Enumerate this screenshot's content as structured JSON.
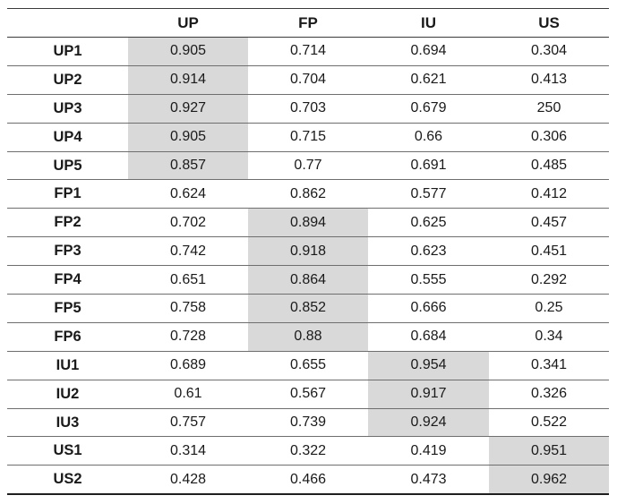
{
  "table": {
    "corner": "",
    "columns": [
      "UP",
      "FP",
      "IU",
      "US"
    ],
    "rows": [
      {
        "label": "UP1",
        "values": [
          "0.905",
          "0.714",
          "0.694",
          "0.304"
        ],
        "highlight": 0
      },
      {
        "label": "UP2",
        "values": [
          "0.914",
          "0.704",
          "0.621",
          "0.413"
        ],
        "highlight": 0
      },
      {
        "label": "UP3",
        "values": [
          "0.927",
          "0.703",
          "0.679",
          "250"
        ],
        "highlight": 0
      },
      {
        "label": "UP4",
        "values": [
          "0.905",
          "0.715",
          "0.66",
          "0.306"
        ],
        "highlight": 0
      },
      {
        "label": "UP5",
        "values": [
          "0.857",
          "0.77",
          "0.691",
          "0.485"
        ],
        "highlight": 0
      },
      {
        "label": "FP1",
        "values": [
          "0.624",
          "0.862",
          "0.577",
          "0.412"
        ],
        "highlight": -1
      },
      {
        "label": "FP2",
        "values": [
          "0.702",
          "0.894",
          "0.625",
          "0.457"
        ],
        "highlight": 1
      },
      {
        "label": "FP3",
        "values": [
          "0.742",
          "0.918",
          "0.623",
          "0.451"
        ],
        "highlight": 1
      },
      {
        "label": "FP4",
        "values": [
          "0.651",
          "0.864",
          "0.555",
          "0.292"
        ],
        "highlight": 1
      },
      {
        "label": "FP5",
        "values": [
          "0.758",
          "0.852",
          "0.666",
          "0.25"
        ],
        "highlight": 1
      },
      {
        "label": "FP6",
        "values": [
          "0.728",
          "0.88",
          "0.684",
          "0.34"
        ],
        "highlight": 1
      },
      {
        "label": "IU1",
        "values": [
          "0.689",
          "0.655",
          "0.954",
          "0.341"
        ],
        "highlight": 2
      },
      {
        "label": "IU2",
        "values": [
          "0.61",
          "0.567",
          "0.917",
          "0.326"
        ],
        "highlight": 2
      },
      {
        "label": "IU3",
        "values": [
          "0.757",
          "0.739",
          "0.924",
          "0.522"
        ],
        "highlight": 2
      },
      {
        "label": "US1",
        "values": [
          "0.314",
          "0.322",
          "0.419",
          "0.951"
        ],
        "highlight": 3
      },
      {
        "label": "US2",
        "values": [
          "0.428",
          "0.466",
          "0.473",
          "0.962"
        ],
        "highlight": 3
      }
    ],
    "highlight_color": "#d9d9d9"
  }
}
